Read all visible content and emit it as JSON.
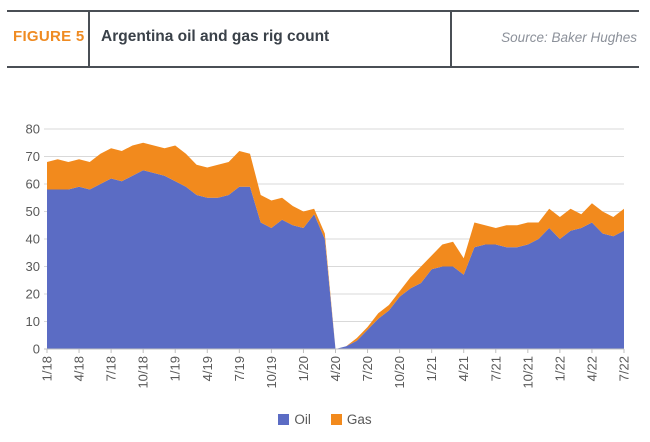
{
  "header": {
    "figure_label": "FIGURE 5",
    "title": "Argentina oil and gas rig count",
    "source": "Source: Baker Hughes"
  },
  "legend": [
    {
      "label": "Oil",
      "color": "#5B6CC4"
    },
    {
      "label": "Gas",
      "color": "#F28A1D"
    }
  ],
  "colors": {
    "oil": "#5B6CC4",
    "gas": "#F28A1D",
    "figure_label_orange": "#EF8B22",
    "title_text": "#3A4149",
    "source_text": "#8C919A",
    "axis_text": "#595959",
    "gridline": "#D9D9D9",
    "axis_line": "#BFBFBF"
  },
  "chart_data": {
    "type": "area",
    "stacked": true,
    "title": "Argentina oil and gas rig count",
    "xlabel": "",
    "ylabel": "",
    "ylim": [
      0,
      80
    ],
    "ytick_step": 10,
    "grid": true,
    "legend_position": "bottom",
    "x_label_every": 3,
    "x": [
      "1/18",
      "2/18",
      "3/18",
      "4/18",
      "5/18",
      "6/18",
      "7/18",
      "8/18",
      "9/18",
      "10/18",
      "11/18",
      "12/18",
      "1/19",
      "2/19",
      "3/19",
      "4/19",
      "5/19",
      "6/19",
      "7/19",
      "8/19",
      "9/19",
      "10/19",
      "11/19",
      "12/19",
      "1/20",
      "2/20",
      "3/20",
      "4/20",
      "5/20",
      "6/20",
      "7/20",
      "8/20",
      "9/20",
      "10/20",
      "11/20",
      "12/20",
      "1/21",
      "2/21",
      "3/21",
      "4/21",
      "5/21",
      "6/21",
      "7/21",
      "8/21",
      "9/21",
      "10/21",
      "11/21",
      "12/21",
      "1/22",
      "2/22",
      "3/22",
      "4/22",
      "5/22",
      "6/22",
      "7/22"
    ],
    "series": [
      {
        "name": "Oil",
        "color": "#5B6CC4",
        "values": [
          58,
          58,
          58,
          59,
          58,
          60,
          62,
          61,
          63,
          65,
          64,
          63,
          61,
          59,
          56,
          55,
          55,
          56,
          59,
          59,
          46,
          44,
          47,
          45,
          44,
          49,
          40,
          0,
          1,
          3,
          7,
          11,
          14,
          19,
          22,
          24,
          29,
          30,
          30,
          27,
          37,
          38,
          38,
          37,
          37,
          38,
          40,
          44,
          40,
          43,
          44,
          46,
          42,
          41,
          43
        ]
      },
      {
        "name": "Gas",
        "color": "#F28A1D",
        "values": [
          10,
          11,
          10,
          10,
          10,
          11,
          11,
          11,
          11,
          10,
          10,
          10,
          13,
          12,
          11,
          11,
          12,
          12,
          13,
          12,
          10,
          10,
          8,
          7,
          6,
          2,
          2,
          0,
          0,
          1,
          1,
          2,
          2,
          2,
          4,
          6,
          5,
          8,
          9,
          6,
          9,
          7,
          6,
          8,
          8,
          8,
          6,
          7,
          8,
          8,
          5,
          7,
          8,
          7,
          8
        ]
      }
    ]
  }
}
